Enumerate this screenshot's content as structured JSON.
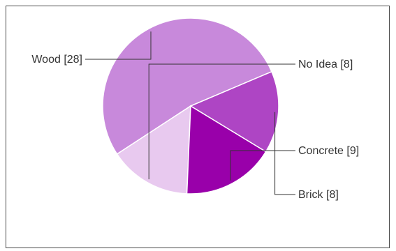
{
  "chart_data": {
    "type": "pie",
    "slices": [
      {
        "label": "Wood [28]",
        "value": 28,
        "color": "#c889db"
      },
      {
        "label": "No Idea [8]",
        "value": 8,
        "color": "#e8c9ef"
      },
      {
        "label": "Concrete [9]",
        "value": 9,
        "color": "#9900aa"
      },
      {
        "label": "Brick [8]",
        "value": 8,
        "color": "#ae45c4"
      }
    ],
    "start_angle_deg": -23,
    "direction": "counterclockwise",
    "slice_border": "#ffffff",
    "leader_color": "#333333"
  }
}
